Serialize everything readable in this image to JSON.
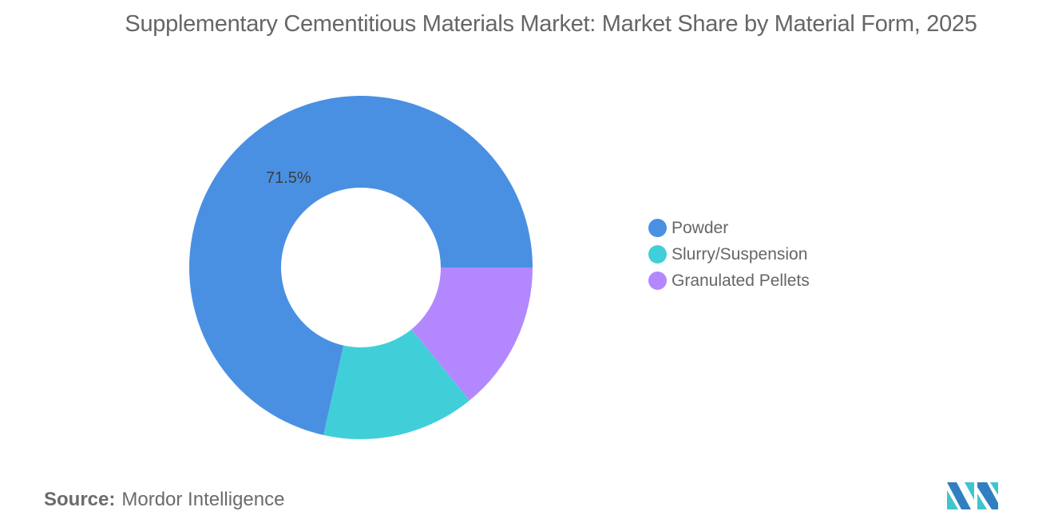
{
  "title": "Supplementary Cementitious Materials Market: Market Share by Material Form, 2025",
  "chart_data": {
    "type": "pie",
    "variant": "donut",
    "title": "Supplementary Cementitious Materials Market: Market Share by Material Form, 2025",
    "categories": [
      "Powder",
      "Slurry/Suspension",
      "Granulated Pellets"
    ],
    "values": [
      71.5,
      14.4,
      14.1
    ],
    "unit": "%",
    "colors": [
      "#4a90e2",
      "#40cfd9",
      "#b388ff"
    ],
    "data_labels": [
      {
        "category": "Powder",
        "text": "71.5%"
      }
    ],
    "legend_position": "right"
  },
  "legend": {
    "items": [
      {
        "label": "Powder",
        "color": "#4a90e2"
      },
      {
        "label": "Slurry/Suspension",
        "color": "#40cfd9"
      },
      {
        "label": "Granulated Pellets",
        "color": "#b388ff"
      }
    ]
  },
  "labels": {
    "powder_pct": "71.5%"
  },
  "source": {
    "label": "Source:",
    "text": "Mordor Intelligence"
  },
  "logo": {
    "name": "Mordor Intelligence logo"
  }
}
